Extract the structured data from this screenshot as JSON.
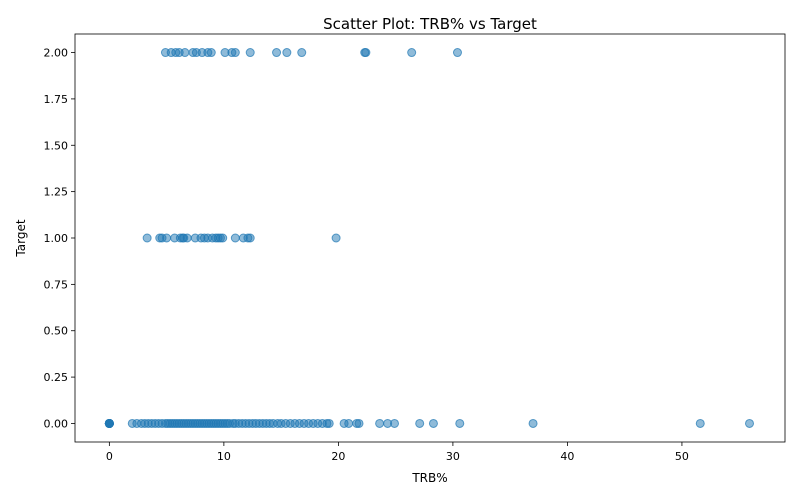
{
  "chart_data": {
    "type": "scatter",
    "title": "Scatter Plot: TRB% vs Target",
    "xlabel": "TRB%",
    "ylabel": "Target",
    "xlim": [
      -3,
      59
    ],
    "ylim": [
      -0.1,
      2.1
    ],
    "xticks": [
      0,
      10,
      20,
      30,
      40,
      50
    ],
    "xtick_labels": [
      "0",
      "10",
      "20",
      "30",
      "40",
      "50"
    ],
    "yticks": [
      0,
      0.25,
      0.5,
      0.75,
      1.0,
      1.25,
      1.5,
      1.75,
      2.0
    ],
    "ytick_labels": [
      "0.00",
      "0.25",
      "0.50",
      "0.75",
      "1.00",
      "1.25",
      "1.50",
      "1.75",
      "2.00"
    ],
    "grid": false,
    "legend": "none",
    "marker_color": "#1f77b4",
    "marker_alpha": 0.5,
    "series": [
      {
        "x": [
          0,
          0,
          0,
          0,
          0,
          0,
          0,
          0,
          0,
          0,
          2.0,
          2.4,
          2.8,
          3.1,
          3.4,
          3.7,
          4.0,
          4.3,
          4.6,
          4.9,
          5.1,
          5.3,
          5.5,
          5.7,
          5.9,
          6.1,
          6.3,
          6.5,
          6.7,
          6.9,
          7.1,
          7.3,
          7.5,
          7.7,
          7.9,
          8.1,
          8.3,
          8.5,
          8.7,
          8.9,
          9.1,
          9.3,
          9.5,
          9.7,
          9.9,
          10.1,
          10.3,
          10.5,
          10.8,
          11.0,
          11.3,
          11.6,
          11.9,
          12.2,
          12.5,
          12.8,
          13.1,
          13.4,
          13.7,
          14.0,
          14.3,
          14.7,
          15.0,
          15.4,
          15.8,
          16.2,
          16.6,
          17.0,
          17.4,
          17.8,
          18.2,
          18.6,
          19.0,
          19.2,
          20.5,
          20.9,
          21.6,
          21.8,
          23.6,
          24.3,
          24.9,
          27.1,
          28.3,
          30.6,
          37.0,
          51.6,
          55.9,
          3.3,
          4.4,
          4.6,
          5.0,
          5.7,
          6.2,
          6.4,
          6.5,
          6.8,
          7.5,
          8.0,
          8.3,
          8.6,
          9.0,
          9.3,
          9.5,
          9.7,
          9.9,
          11.0,
          11.7,
          12.1,
          12.3,
          19.8,
          4.9,
          5.4,
          5.8,
          6.1,
          6.6,
          7.3,
          7.6,
          8.1,
          8.6,
          8.9,
          10.1,
          10.7,
          11.0,
          12.3,
          14.6,
          15.5,
          16.8,
          22.3,
          22.4,
          26.4,
          30.4
        ],
        "y": [
          0,
          0,
          0,
          0,
          0,
          0,
          0,
          0,
          0,
          0,
          0,
          0,
          0,
          0,
          0,
          0,
          0,
          0,
          0,
          0,
          0,
          0,
          0,
          0,
          0,
          0,
          0,
          0,
          0,
          0,
          0,
          0,
          0,
          0,
          0,
          0,
          0,
          0,
          0,
          0,
          0,
          0,
          0,
          0,
          0,
          0,
          0,
          0,
          0,
          0,
          0,
          0,
          0,
          0,
          0,
          0,
          0,
          0,
          0,
          0,
          0,
          0,
          0,
          0,
          0,
          0,
          0,
          0,
          0,
          0,
          0,
          0,
          0,
          0,
          0,
          0,
          0,
          0,
          0,
          0,
          0,
          0,
          0,
          0,
          0,
          0,
          0,
          1,
          1,
          1,
          1,
          1,
          1,
          1,
          1,
          1,
          1,
          1,
          1,
          1,
          1,
          1,
          1,
          1,
          1,
          1,
          1,
          1,
          1,
          1,
          2,
          2,
          2,
          2,
          2,
          2,
          2,
          2,
          2,
          2,
          2,
          2,
          2,
          2,
          2,
          2,
          2,
          2,
          2,
          2,
          2
        ]
      }
    ]
  }
}
